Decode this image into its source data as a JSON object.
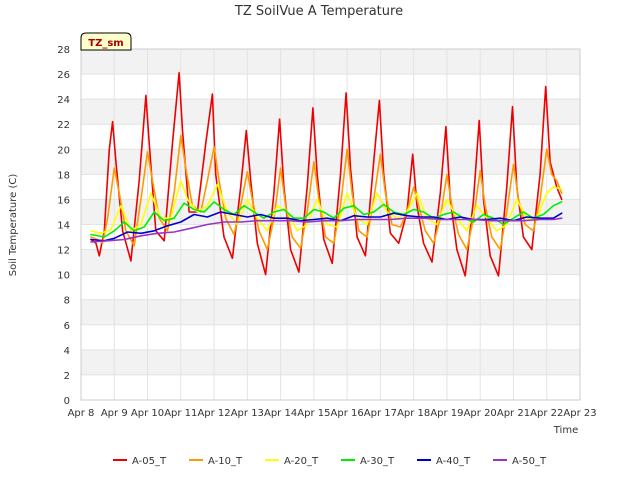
{
  "chart_data": {
    "type": "line",
    "title": "TZ SoilVue A Temperature",
    "xlabel": "Time",
    "ylabel": "Soil Temperature (C)",
    "badge": "TZ_sm",
    "ylim": [
      0,
      28
    ],
    "yticks": [
      0,
      2,
      4,
      6,
      8,
      10,
      12,
      14,
      16,
      18,
      20,
      22,
      24,
      26,
      28
    ],
    "xlim": [
      8,
      23
    ],
    "xticks": [
      8,
      9,
      10,
      11,
      12,
      13,
      14,
      15,
      16,
      17,
      18,
      19,
      20,
      21,
      22,
      23
    ],
    "xtick_labels": [
      "Apr 8",
      "Apr 9",
      "Apr 10",
      "Apr 11",
      "Apr 12",
      "Apr 13",
      "Apr 14",
      "Apr 15",
      "Apr 16",
      "Apr 17",
      "Apr 18",
      "Apr 19",
      "Apr 20",
      "Apr 21",
      "Apr 22",
      "Apr 23"
    ],
    "grid": true,
    "legend_position": "bottom",
    "series": [
      {
        "name": "A-05_T",
        "color": "#ee0000",
        "x": [
          8.3,
          8.45,
          8.55,
          8.7,
          8.85,
          8.95,
          9.05,
          9.25,
          9.5,
          9.75,
          9.95,
          10.05,
          10.25,
          10.5,
          10.75,
          10.95,
          11.05,
          11.25,
          11.5,
          11.75,
          11.95,
          12.05,
          12.3,
          12.55,
          12.8,
          12.97,
          13.1,
          13.3,
          13.55,
          13.8,
          13.97,
          14.1,
          14.3,
          14.55,
          14.8,
          14.97,
          15.1,
          15.3,
          15.55,
          15.8,
          15.97,
          16.1,
          16.3,
          16.55,
          16.8,
          16.97,
          17.1,
          17.3,
          17.55,
          17.8,
          17.97,
          18.1,
          18.3,
          18.55,
          18.8,
          18.97,
          19.1,
          19.3,
          19.55,
          19.8,
          19.97,
          20.1,
          20.3,
          20.55,
          20.8,
          20.97,
          21.1,
          21.3,
          21.55,
          21.8,
          21.97,
          22.1,
          22.3,
          22.45
        ],
        "y": [
          12.8,
          12.5,
          11.5,
          13.5,
          20.0,
          22.2,
          19.0,
          13.5,
          11.1,
          17.5,
          24.3,
          20.5,
          13.5,
          12.7,
          20.5,
          26.1,
          21.5,
          15.0,
          15.0,
          20.5,
          24.4,
          18.0,
          13.0,
          11.3,
          17.0,
          21.5,
          17.5,
          12.5,
          10.0,
          16.5,
          22.4,
          17.0,
          12.0,
          10.2,
          17.0,
          23.3,
          18.0,
          12.8,
          10.9,
          18.0,
          24.5,
          18.5,
          13.0,
          11.5,
          19.0,
          23.9,
          18.0,
          13.3,
          12.5,
          15.0,
          19.6,
          15.5,
          12.5,
          11.0,
          16.5,
          21.8,
          16.0,
          12.0,
          9.9,
          16.0,
          22.3,
          16.0,
          11.5,
          9.9,
          17.0,
          23.4,
          17.0,
          13.0,
          12.0,
          18.0,
          25.0,
          19.0,
          17.0,
          16.0
        ]
      },
      {
        "name": "A-10_T",
        "color": "#ff9900",
        "x": [
          8.3,
          8.5,
          8.65,
          8.8,
          9.0,
          9.15,
          9.35,
          9.6,
          9.8,
          10.0,
          10.15,
          10.35,
          10.6,
          10.8,
          11.0,
          11.15,
          11.35,
          11.6,
          11.8,
          12.0,
          12.15,
          12.35,
          12.6,
          12.8,
          13.0,
          13.15,
          13.35,
          13.6,
          13.8,
          14.0,
          14.15,
          14.35,
          14.6,
          14.8,
          15.0,
          15.15,
          15.35,
          15.6,
          15.8,
          16.0,
          16.15,
          16.35,
          16.6,
          16.8,
          17.0,
          17.15,
          17.35,
          17.6,
          17.8,
          18.0,
          18.15,
          18.35,
          18.6,
          18.8,
          19.0,
          19.15,
          19.35,
          19.6,
          19.8,
          20.0,
          20.15,
          20.35,
          20.6,
          20.8,
          21.0,
          21.15,
          21.35,
          21.6,
          21.8,
          22.0,
          22.15,
          22.3,
          22.45
        ],
        "y": [
          13.0,
          12.8,
          12.5,
          14.5,
          18.5,
          16.5,
          13.5,
          12.3,
          16.0,
          19.8,
          17.5,
          14.5,
          13.5,
          16.5,
          21.1,
          18.5,
          15.5,
          15.0,
          17.5,
          20.2,
          17.5,
          14.5,
          13.2,
          15.5,
          18.2,
          16.0,
          13.5,
          12.0,
          14.5,
          18.5,
          15.5,
          13.0,
          12.1,
          15.0,
          19.0,
          16.0,
          13.0,
          12.5,
          15.5,
          20.0,
          16.5,
          13.5,
          13.0,
          16.0,
          19.6,
          16.5,
          14.0,
          13.8,
          15.0,
          17.0,
          15.5,
          13.5,
          12.5,
          14.5,
          18.0,
          15.5,
          13.2,
          12.0,
          14.5,
          18.3,
          15.5,
          13.0,
          12.0,
          15.0,
          18.8,
          16.0,
          14.0,
          13.5,
          16.0,
          20.0,
          18.0,
          17.5,
          16.5
        ]
      },
      {
        "name": "A-20_T",
        "color": "#ffff00",
        "x": [
          8.3,
          8.6,
          8.9,
          9.2,
          9.5,
          9.8,
          10.1,
          10.4,
          10.7,
          11.0,
          11.2,
          11.5,
          11.8,
          12.1,
          12.4,
          12.7,
          13.0,
          13.3,
          13.6,
          13.9,
          14.2,
          14.5,
          14.8,
          15.1,
          15.4,
          15.7,
          16.0,
          16.3,
          16.6,
          16.9,
          17.2,
          17.5,
          17.8,
          18.1,
          18.4,
          18.7,
          19.0,
          19.3,
          19.6,
          19.9,
          20.2,
          20.5,
          20.8,
          21.1,
          21.4,
          21.7,
          22.0,
          22.2,
          22.45
        ],
        "y": [
          13.5,
          13.3,
          13.6,
          15.5,
          13.5,
          14.0,
          16.5,
          14.5,
          14.5,
          17.5,
          16.0,
          15.0,
          15.5,
          17.2,
          15.0,
          14.0,
          16.0,
          14.5,
          13.5,
          15.5,
          15.0,
          13.5,
          14.0,
          16.0,
          14.0,
          13.8,
          16.5,
          14.5,
          14.0,
          16.5,
          15.0,
          14.5,
          15.0,
          16.5,
          14.5,
          14.0,
          16.0,
          14.5,
          13.5,
          15.5,
          14.5,
          13.5,
          14.0,
          16.0,
          14.5,
          14.5,
          16.5,
          17.0,
          16.8
        ]
      },
      {
        "name": "A-30_T",
        "color": "#00ee00",
        "x": [
          8.3,
          8.7,
          9.0,
          9.3,
          9.6,
          9.9,
          10.2,
          10.5,
          10.8,
          11.1,
          11.4,
          11.7,
          12.0,
          12.3,
          12.6,
          12.9,
          13.2,
          13.5,
          13.8,
          14.1,
          14.4,
          14.7,
          15.0,
          15.3,
          15.6,
          15.9,
          16.2,
          16.5,
          16.8,
          17.1,
          17.4,
          17.7,
          18.0,
          18.3,
          18.6,
          18.9,
          19.2,
          19.5,
          19.8,
          20.1,
          20.4,
          20.7,
          21.0,
          21.3,
          21.6,
          21.9,
          22.2,
          22.45
        ],
        "y": [
          13.2,
          13.0,
          13.5,
          14.2,
          13.5,
          13.8,
          15.0,
          14.3,
          14.5,
          15.7,
          15.2,
          15.0,
          15.8,
          15.2,
          14.8,
          15.5,
          15.0,
          14.5,
          15.0,
          15.2,
          14.5,
          14.5,
          15.2,
          15.0,
          14.5,
          15.3,
          15.5,
          14.8,
          15.0,
          15.6,
          15.0,
          14.8,
          15.2,
          15.0,
          14.5,
          14.8,
          15.0,
          14.5,
          14.2,
          14.8,
          14.5,
          14.0,
          14.5,
          15.0,
          14.5,
          14.8,
          15.5,
          15.8
        ]
      },
      {
        "name": "A-40_T",
        "color": "#0000cc",
        "x": [
          8.3,
          8.7,
          9.0,
          9.4,
          9.8,
          10.2,
          10.6,
          11.0,
          11.4,
          11.8,
          12.2,
          12.6,
          13.0,
          13.4,
          13.8,
          14.2,
          14.6,
          15.0,
          15.4,
          15.8,
          16.2,
          16.6,
          17.0,
          17.4,
          17.8,
          18.2,
          18.6,
          19.0,
          19.4,
          19.8,
          20.2,
          20.6,
          21.0,
          21.4,
          21.8,
          22.2,
          22.45
        ],
        "y": [
          12.8,
          12.7,
          12.9,
          13.4,
          13.3,
          13.5,
          13.9,
          14.2,
          14.8,
          14.6,
          15.0,
          14.8,
          14.6,
          14.8,
          14.5,
          14.5,
          14.3,
          14.4,
          14.5,
          14.3,
          14.7,
          14.6,
          14.6,
          14.9,
          14.7,
          14.6,
          14.6,
          14.4,
          14.6,
          14.4,
          14.4,
          14.5,
          14.3,
          14.6,
          14.5,
          14.5,
          14.9
        ]
      },
      {
        "name": "A-50_T",
        "color": "#9933cc",
        "x": [
          8.3,
          8.8,
          9.3,
          9.8,
          10.3,
          10.8,
          11.3,
          11.8,
          12.3,
          12.8,
          13.3,
          13.8,
          14.3,
          14.8,
          15.3,
          15.8,
          16.3,
          16.8,
          17.3,
          17.8,
          18.3,
          18.8,
          19.3,
          19.8,
          20.3,
          20.8,
          21.3,
          21.8,
          22.2,
          22.45
        ],
        "y": [
          12.6,
          12.7,
          12.8,
          13.1,
          13.3,
          13.4,
          13.7,
          14.0,
          14.2,
          14.2,
          14.3,
          14.3,
          14.3,
          14.2,
          14.3,
          14.3,
          14.4,
          14.4,
          14.4,
          14.5,
          14.5,
          14.4,
          14.4,
          14.4,
          14.3,
          14.3,
          14.3,
          14.4,
          14.4,
          14.5
        ]
      }
    ]
  }
}
